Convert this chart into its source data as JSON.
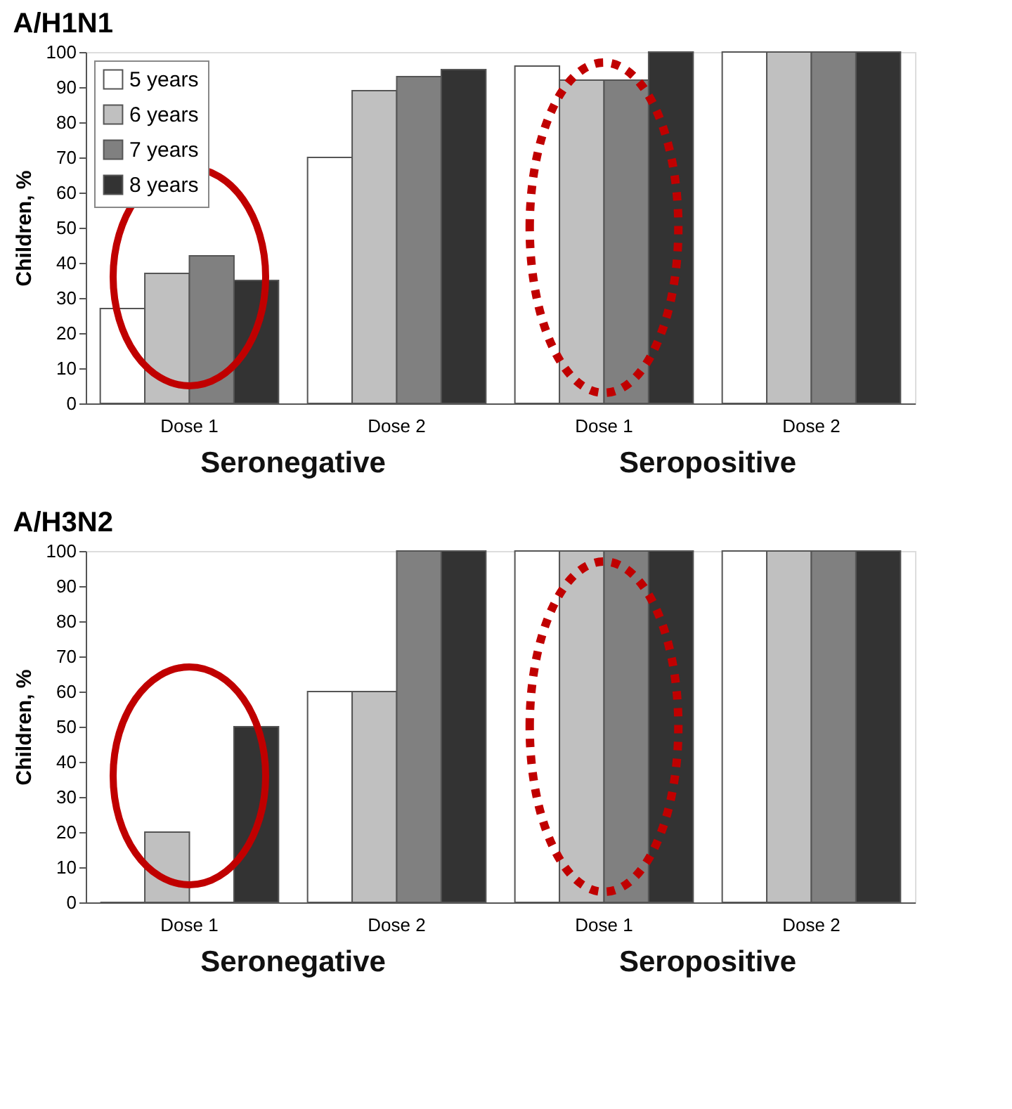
{
  "chart_data": [
    {
      "type": "bar",
      "title": "A/H1N1",
      "ylabel": "Children, %",
      "categories": [
        "Dose 1",
        "Dose 2",
        "Dose 1",
        "Dose 2"
      ],
      "annotations": [
        "Seronegative",
        "Seropositive"
      ],
      "ylim": [
        0,
        100
      ],
      "yticks": [
        0,
        10,
        20,
        30,
        40,
        50,
        60,
        70,
        80,
        90,
        100
      ],
      "grid": false,
      "legend": "top left",
      "series": [
        {
          "name": "5 years",
          "color": "#ffffff",
          "values": [
            27,
            70,
            96,
            100
          ]
        },
        {
          "name": "6 years",
          "color": "#c0c0c0",
          "values": [
            37,
            89,
            92,
            100
          ]
        },
        {
          "name": "7 years",
          "color": "#808080",
          "values": [
            42,
            93,
            92,
            100
          ]
        },
        {
          "name": "8 years",
          "color": "#333333",
          "values": [
            35,
            95,
            100,
            100
          ]
        }
      ]
    },
    {
      "type": "bar",
      "title": "A/H3N2",
      "ylabel": "Children, %",
      "categories": [
        "Dose 1",
        "Dose 2",
        "Dose 1",
        "Dose 2"
      ],
      "annotations": [
        "Seronegative",
        "Seropositive"
      ],
      "ylim": [
        0,
        100
      ],
      "yticks": [
        0,
        10,
        20,
        30,
        40,
        50,
        60,
        70,
        80,
        90,
        100
      ],
      "grid": false,
      "legend": false,
      "series": [
        {
          "name": "5 years",
          "color": "#ffffff",
          "values": [
            0,
            60,
            100,
            100
          ]
        },
        {
          "name": "6 years",
          "color": "#c0c0c0",
          "values": [
            20,
            60,
            100,
            100
          ]
        },
        {
          "name": "7 years",
          "color": "#808080",
          "values": [
            0,
            100,
            100,
            100
          ]
        },
        {
          "name": "8 years",
          "color": "#333333",
          "values": [
            50,
            100,
            100,
            100
          ]
        }
      ]
    }
  ]
}
